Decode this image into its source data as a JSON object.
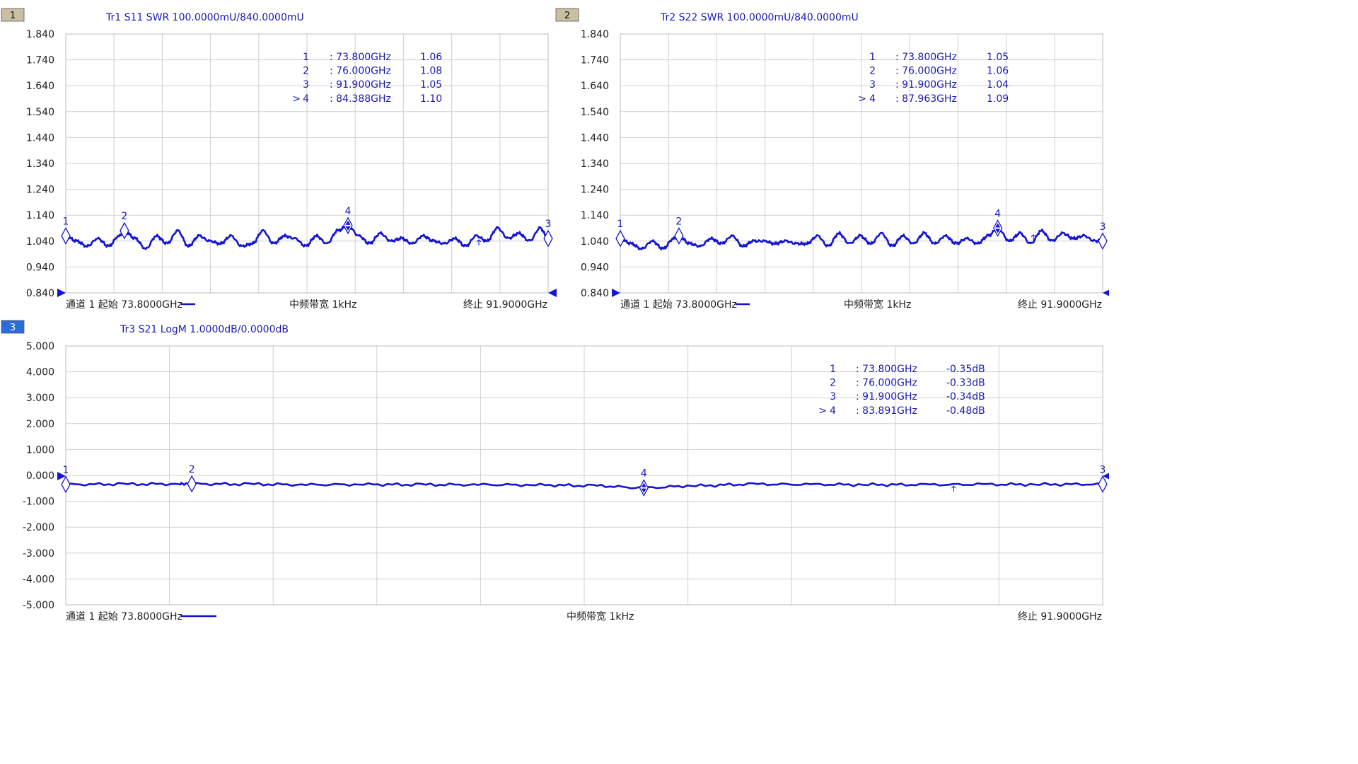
{
  "colors": {
    "trace": "#1414d2",
    "grid": "#cfcfcf",
    "label": "#1a1ab4",
    "axis_text": "#202020",
    "marker_text": "#1a1ab4",
    "badge_inactive": "#c8bfa4",
    "badge_active": "#2a6cd8"
  },
  "chart_data": [
    {
      "type": "line",
      "id": "1",
      "header": "Tr1 S11 SWR 100.0000mU/840.0000mU",
      "ylim": [
        0.84,
        1.84
      ],
      "ytick_labels": [
        "1.840",
        "1.740",
        "1.640",
        "1.540",
        "1.440",
        "1.340",
        "1.240",
        "1.140",
        "1.040",
        "0.940",
        "0.840"
      ],
      "x_range_ghz": [
        73.8,
        91.9
      ],
      "vdivs": 10,
      "footer": {
        "left": "通道 1 起始 73.8000GHz",
        "center": "中频带宽 1kHz",
        "right": "终止 91.9000GHz"
      },
      "series": [
        {
          "x": [
            73.8,
            74.2,
            74.6,
            75.0,
            75.4,
            75.8,
            76.0,
            76.4,
            76.8,
            77.2,
            77.6,
            78.0,
            78.4,
            78.8,
            79.2,
            79.6,
            80.0,
            80.4,
            80.8,
            81.2,
            81.6,
            82.0,
            82.4,
            82.8,
            83.2,
            83.6,
            84.0,
            84.388,
            84.8,
            85.2,
            85.6,
            86.0,
            86.4,
            86.8,
            87.2,
            87.6,
            88.0,
            88.4,
            88.8,
            89.2,
            89.6,
            90.0,
            90.4,
            90.8,
            91.2,
            91.6,
            91.9
          ],
          "values": [
            1.06,
            1.04,
            1.02,
            1.05,
            1.02,
            1.06,
            1.08,
            1.05,
            1.01,
            1.06,
            1.03,
            1.08,
            1.02,
            1.06,
            1.04,
            1.03,
            1.06,
            1.02,
            1.03,
            1.08,
            1.03,
            1.06,
            1.05,
            1.02,
            1.06,
            1.03,
            1.08,
            1.1,
            1.06,
            1.03,
            1.07,
            1.04,
            1.05,
            1.03,
            1.06,
            1.04,
            1.03,
            1.05,
            1.02,
            1.06,
            1.04,
            1.09,
            1.05,
            1.07,
            1.04,
            1.09,
            1.05
          ]
        }
      ],
      "markers": [
        {
          "label": "1",
          "x": 73.8,
          "y": 1.06
        },
        {
          "label": "2",
          "x": 76.0,
          "y": 1.08
        },
        {
          "label": "4",
          "x": 84.388,
          "y": 1.1,
          "active": true
        },
        {
          "label": "3",
          "x": 91.9,
          "y": 1.05
        }
      ],
      "ref_tick_x": 89.3,
      "marker_table": [
        {
          "prefix": "",
          "num": "1",
          "freq": ": 73.800GHz",
          "value": "1.06"
        },
        {
          "prefix": "",
          "num": "2",
          "freq": ": 76.000GHz",
          "value": "1.08"
        },
        {
          "prefix": "",
          "num": "3",
          "freq": ": 91.900GHz",
          "value": "1.05"
        },
        {
          "prefix": ">",
          "num": "4",
          "freq": ": 84.388GHz",
          "value": "1.10"
        }
      ]
    },
    {
      "type": "line",
      "id": "2",
      "header": "Tr2 S22 SWR 100.0000mU/840.0000mU",
      "ylim": [
        0.84,
        1.84
      ],
      "ytick_labels": [
        "1.840",
        "1.740",
        "1.640",
        "1.540",
        "1.440",
        "1.340",
        "1.240",
        "1.140",
        "1.040",
        "0.940",
        "0.840"
      ],
      "x_range_ghz": [
        73.8,
        91.9
      ],
      "vdivs": 10,
      "footer": {
        "left": "通道 1 起始 73.8000GHz",
        "center": "中频带宽 1kHz",
        "right": "终止 91.9000GHz"
      },
      "series": [
        {
          "x": [
            73.8,
            74.2,
            74.6,
            75.0,
            75.4,
            75.8,
            76.0,
            76.4,
            76.8,
            77.2,
            77.6,
            78.0,
            78.4,
            78.8,
            79.2,
            79.6,
            80.0,
            80.4,
            80.8,
            81.2,
            81.6,
            82.0,
            82.4,
            82.8,
            83.2,
            83.6,
            84.0,
            84.4,
            84.8,
            85.2,
            85.6,
            86.0,
            86.4,
            86.8,
            87.2,
            87.6,
            87.963,
            88.4,
            88.8,
            89.2,
            89.6,
            90.0,
            90.4,
            90.8,
            91.2,
            91.6,
            91.9
          ],
          "values": [
            1.05,
            1.03,
            1.01,
            1.04,
            1.01,
            1.05,
            1.06,
            1.03,
            1.02,
            1.05,
            1.03,
            1.06,
            1.02,
            1.04,
            1.04,
            1.03,
            1.04,
            1.03,
            1.03,
            1.06,
            1.02,
            1.07,
            1.03,
            1.06,
            1.03,
            1.07,
            1.02,
            1.06,
            1.03,
            1.07,
            1.03,
            1.06,
            1.03,
            1.05,
            1.03,
            1.06,
            1.09,
            1.04,
            1.07,
            1.03,
            1.08,
            1.04,
            1.07,
            1.05,
            1.06,
            1.04,
            1.04
          ]
        }
      ],
      "markers": [
        {
          "label": "1",
          "x": 73.8,
          "y": 1.05
        },
        {
          "label": "2",
          "x": 76.0,
          "y": 1.06
        },
        {
          "label": "4",
          "x": 87.963,
          "y": 1.09,
          "active": true
        },
        {
          "label": "3",
          "x": 91.9,
          "y": 1.04
        }
      ],
      "ref_tick_x": 89.3,
      "marker_table": [
        {
          "prefix": "",
          "num": "1",
          "freq": ": 73.800GHz",
          "value": "1.05"
        },
        {
          "prefix": "",
          "num": "2",
          "freq": ": 76.000GHz",
          "value": "1.06"
        },
        {
          "prefix": "",
          "num": "3",
          "freq": ": 91.900GHz",
          "value": "1.04"
        },
        {
          "prefix": ">",
          "num": "4",
          "freq": ": 87.963GHz",
          "value": "1.09"
        }
      ]
    },
    {
      "type": "line",
      "id": "3",
      "header": "Tr3 S21 LogM 1.0000dB/0.0000dB",
      "ylim": [
        -5,
        5
      ],
      "ytick_labels": [
        "5.000",
        "4.000",
        "3.000",
        "2.000",
        "1.000",
        "0.000",
        "-1.000",
        "-2.000",
        "-3.000",
        "-4.000",
        "-5.000"
      ],
      "x_range_ghz": [
        73.8,
        91.9
      ],
      "vdivs": 10,
      "footer": {
        "left": "通道 1 起始 73.8000GHz",
        "center": "中频带宽 1kHz",
        "right": "终止 91.9000GHz"
      },
      "series": [
        {
          "x": [
            73.8,
            74.8,
            75.8,
            76.0,
            77.0,
            78.0,
            79.0,
            80.0,
            81.0,
            82.0,
            83.0,
            83.891,
            84.8,
            85.8,
            86.8,
            87.8,
            88.8,
            89.8,
            90.8,
            91.9
          ],
          "values": [
            -0.35,
            -0.34,
            -0.33,
            -0.33,
            -0.34,
            -0.36,
            -0.35,
            -0.36,
            -0.36,
            -0.37,
            -0.4,
            -0.48,
            -0.4,
            -0.34,
            -0.35,
            -0.36,
            -0.36,
            -0.35,
            -0.35,
            -0.34
          ]
        }
      ],
      "markers": [
        {
          "label": "1",
          "x": 73.8,
          "y": -0.35
        },
        {
          "label": "2",
          "x": 76.0,
          "y": -0.33
        },
        {
          "label": "4",
          "x": 83.891,
          "y": -0.48,
          "active": true
        },
        {
          "label": "3",
          "x": 91.9,
          "y": -0.34
        }
      ],
      "ref_tick_x": 89.3,
      "marker_table": [
        {
          "prefix": "",
          "num": "1",
          "freq": ": 73.800GHz",
          "value": "-0.35dB"
        },
        {
          "prefix": "",
          "num": "2",
          "freq": ": 76.000GHz",
          "value": "-0.33dB"
        },
        {
          "prefix": "",
          "num": "3",
          "freq": ": 91.900GHz",
          "value": "-0.34dB"
        },
        {
          "prefix": ">",
          "num": "4",
          "freq": ": 83.891GHz",
          "value": "-0.48dB"
        }
      ]
    }
  ]
}
